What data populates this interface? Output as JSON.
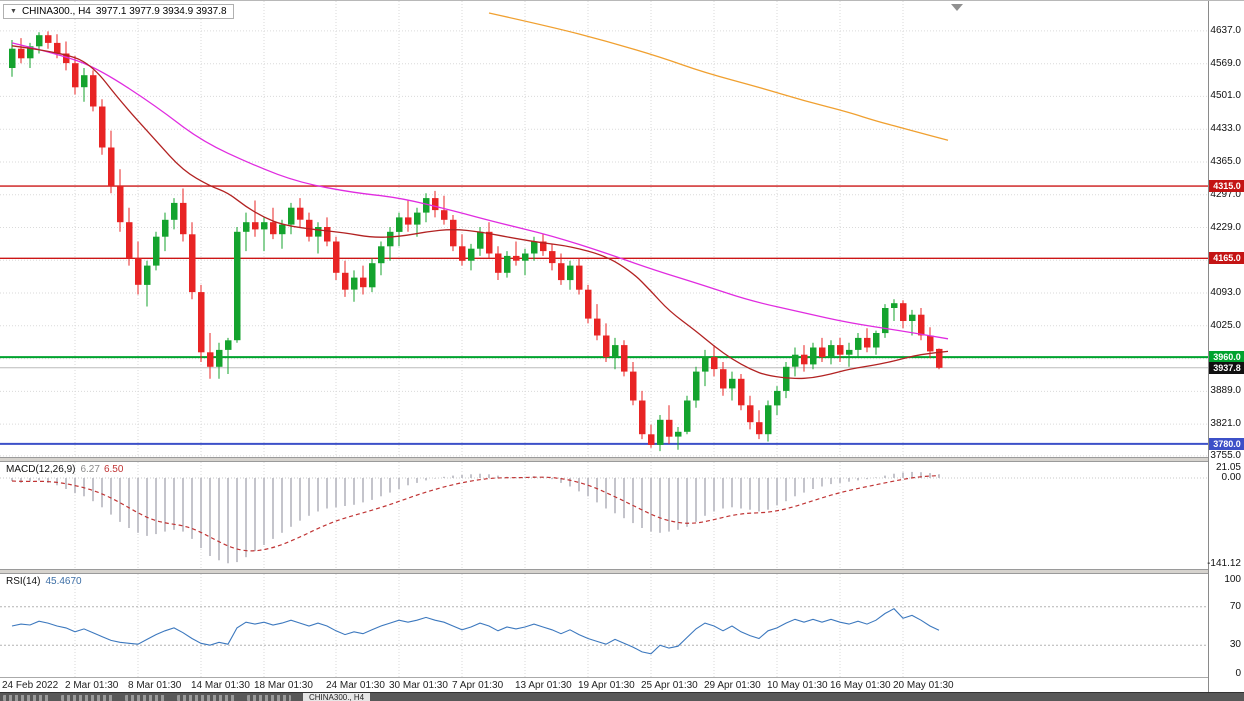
{
  "header": {
    "collapse_icon": "▼",
    "symbol_timeframe": "CHINA300., H4",
    "ohlc_text": "3977.1 3977.9 3934.9 3937.8"
  },
  "bottom_bar": {
    "active_tab": "CHINA300., H4"
  },
  "chart_data": {
    "type": "candlestick",
    "title": "CHINA300., H4",
    "symbol": "CHINA300.",
    "timeframe": "H4",
    "current_ohlc": {
      "open": 3977.1,
      "high": 3977.9,
      "low": 3934.9,
      "close": 3937.8
    },
    "colors": {
      "up": "#14a32e",
      "down": "#e82424",
      "grid": "#dadada",
      "rsi_line": "#3c78be",
      "macd_hist": "#b6b6be",
      "macd_signal": "#c03434"
    },
    "price_axis": {
      "grid_prices": [
        4637,
        4569,
        4501,
        4433,
        4365,
        4297,
        4229,
        4161,
        4093,
        4025,
        3957,
        3889,
        3821,
        3755
      ],
      "labels": [
        {
          "text": "4637.0",
          "price": 4637
        },
        {
          "text": "4569.0",
          "price": 4569
        },
        {
          "text": "4501.0",
          "price": 4501
        },
        {
          "text": "4433.0",
          "price": 4433
        },
        {
          "text": "4365.0",
          "price": 4365
        },
        {
          "text": "4297.0",
          "price": 4297
        },
        {
          "text": "4229.0",
          "price": 4229
        },
        {
          "text": "4093.0",
          "price": 4093
        },
        {
          "text": "4025.0",
          "price": 4025
        },
        {
          "text": "3889.0",
          "price": 3889
        },
        {
          "text": "3821.0",
          "price": 3821
        },
        {
          "text": "3755.0",
          "price": 3755
        }
      ],
      "badges": [
        {
          "text": "4315.0",
          "price": 4315,
          "bg": "#c41414",
          "name": "resistance-line-badge"
        },
        {
          "text": "4165.0",
          "price": 4165,
          "bg": "#c41414",
          "name": "resistance-line-badge"
        },
        {
          "text": "3960.0",
          "price": 3960,
          "bg": "#00a32e",
          "name": "support-line-badge"
        },
        {
          "text": "3937.8",
          "price": 3937.8,
          "bg": "#101010",
          "name": "current-price-badge"
        },
        {
          "text": "3780.0",
          "price": 3780,
          "bg": "#3c50c8",
          "name": "support-line-badge"
        }
      ]
    },
    "hlines": [
      {
        "price": 4315,
        "color": "#cc1616",
        "w": 1.4
      },
      {
        "price": 4165,
        "color": "#cc1616",
        "w": 1.4
      },
      {
        "price": 3960,
        "color": "#00a32e",
        "w": 2
      },
      {
        "price": 3780,
        "color": "#3c50c8",
        "w": 2
      },
      {
        "price": 3937.8,
        "color": "#bcbcbc",
        "w": 1
      }
    ],
    "time_labels": [
      {
        "i": 0,
        "t": "24 Feb 2022"
      },
      {
        "i": 7,
        "t": "2 Mar 01:30"
      },
      {
        "i": 14,
        "t": "8 Mar 01:30"
      },
      {
        "i": 21,
        "t": "14 Mar 01:30"
      },
      {
        "i": 28,
        "t": "18 Mar 01:30"
      },
      {
        "i": 36,
        "t": "24 Mar 01:30"
      },
      {
        "i": 43,
        "t": "30 Mar 01:30"
      },
      {
        "i": 50,
        "t": "7 Apr 01:30"
      },
      {
        "i": 57,
        "t": "13 Apr 01:30"
      },
      {
        "i": 64,
        "t": "19 Apr 01:30"
      },
      {
        "i": 71,
        "t": "25 Apr 01:30"
      },
      {
        "i": 78,
        "t": "29 Apr 01:30"
      },
      {
        "i": 85,
        "t": "10 May 01:30"
      },
      {
        "i": 92,
        "t": "16 May 01:30"
      },
      {
        "i": 99,
        "t": "20 May 01:30"
      }
    ],
    "candles": [
      [
        4560,
        4618,
        4542,
        4600
      ],
      [
        4600,
        4622,
        4570,
        4580
      ],
      [
        4580,
        4612,
        4560,
        4605
      ],
      [
        4605,
        4634,
        4590,
        4628
      ],
      [
        4628,
        4636,
        4600,
        4612
      ],
      [
        4612,
        4630,
        4580,
        4590
      ],
      [
        4590,
        4615,
        4555,
        4570
      ],
      [
        4570,
        4585,
        4505,
        4520
      ],
      [
        4520,
        4560,
        4490,
        4545
      ],
      [
        4545,
        4555,
        4470,
        4480
      ],
      [
        4480,
        4495,
        4380,
        4395
      ],
      [
        4395,
        4430,
        4300,
        4315
      ],
      [
        4315,
        4350,
        4220,
        4240
      ],
      [
        4240,
        4270,
        4150,
        4165
      ],
      [
        4165,
        4200,
        4090,
        4110
      ],
      [
        4110,
        4160,
        4065,
        4150
      ],
      [
        4150,
        4220,
        4140,
        4210
      ],
      [
        4210,
        4260,
        4180,
        4245
      ],
      [
        4245,
        4290,
        4225,
        4280
      ],
      [
        4280,
        4310,
        4200,
        4215
      ],
      [
        4215,
        4240,
        4080,
        4095
      ],
      [
        4095,
        4110,
        3950,
        3970
      ],
      [
        3970,
        4010,
        3915,
        3940
      ],
      [
        3940,
        3990,
        3915,
        3975
      ],
      [
        3975,
        4000,
        3925,
        3995
      ],
      [
        3995,
        4230,
        3990,
        4220
      ],
      [
        4220,
        4260,
        4180,
        4240
      ],
      [
        4240,
        4285,
        4210,
        4225
      ],
      [
        4225,
        4250,
        4180,
        4240
      ],
      [
        4240,
        4270,
        4205,
        4215
      ],
      [
        4215,
        4245,
        4185,
        4235
      ],
      [
        4235,
        4280,
        4215,
        4270
      ],
      [
        4270,
        4290,
        4230,
        4245
      ],
      [
        4245,
        4260,
        4200,
        4210
      ],
      [
        4210,
        4240,
        4175,
        4230
      ],
      [
        4230,
        4250,
        4190,
        4200
      ],
      [
        4200,
        4210,
        4120,
        4135
      ],
      [
        4135,
        4160,
        4085,
        4100
      ],
      [
        4100,
        4140,
        4075,
        4125
      ],
      [
        4125,
        4150,
        4090,
        4105
      ],
      [
        4105,
        4165,
        4095,
        4155
      ],
      [
        4155,
        4200,
        4130,
        4190
      ],
      [
        4190,
        4230,
        4160,
        4220
      ],
      [
        4220,
        4260,
        4190,
        4250
      ],
      [
        4250,
        4285,
        4220,
        4235
      ],
      [
        4235,
        4270,
        4210,
        4260
      ],
      [
        4260,
        4300,
        4240,
        4290
      ],
      [
        4290,
        4305,
        4250,
        4265
      ],
      [
        4265,
        4295,
        4235,
        4245
      ],
      [
        4245,
        4255,
        4180,
        4190
      ],
      [
        4190,
        4215,
        4150,
        4160
      ],
      [
        4160,
        4195,
        4140,
        4185
      ],
      [
        4185,
        4230,
        4170,
        4220
      ],
      [
        4220,
        4240,
        4165,
        4175
      ],
      [
        4175,
        4190,
        4120,
        4135
      ],
      [
        4135,
        4180,
        4125,
        4170
      ],
      [
        4170,
        4200,
        4150,
        4160
      ],
      [
        4160,
        4185,
        4130,
        4175
      ],
      [
        4175,
        4210,
        4160,
        4200
      ],
      [
        4200,
        4215,
        4170,
        4180
      ],
      [
        4180,
        4195,
        4140,
        4155
      ],
      [
        4155,
        4175,
        4110,
        4120
      ],
      [
        4120,
        4160,
        4100,
        4150
      ],
      [
        4150,
        4165,
        4090,
        4100
      ],
      [
        4100,
        4110,
        4030,
        4040
      ],
      [
        4040,
        4070,
        3995,
        4005
      ],
      [
        4005,
        4030,
        3950,
        3960
      ],
      [
        3960,
        4000,
        3935,
        3985
      ],
      [
        3985,
        3995,
        3920,
        3930
      ],
      [
        3930,
        3950,
        3860,
        3870
      ],
      [
        3870,
        3890,
        3790,
        3800
      ],
      [
        3800,
        3820,
        3772,
        3778
      ],
      [
        3778,
        3840,
        3765,
        3830
      ],
      [
        3830,
        3860,
        3780,
        3795
      ],
      [
        3795,
        3815,
        3768,
        3805
      ],
      [
        3805,
        3880,
        3800,
        3870
      ],
      [
        3870,
        3940,
        3855,
        3930
      ],
      [
        3930,
        3975,
        3900,
        3960
      ],
      [
        3960,
        3985,
        3920,
        3935
      ],
      [
        3935,
        3950,
        3880,
        3895
      ],
      [
        3895,
        3930,
        3870,
        3915
      ],
      [
        3915,
        3925,
        3850,
        3860
      ],
      [
        3860,
        3880,
        3810,
        3825
      ],
      [
        3825,
        3850,
        3790,
        3800
      ],
      [
        3800,
        3870,
        3785,
        3860
      ],
      [
        3860,
        3900,
        3840,
        3890
      ],
      [
        3890,
        3950,
        3875,
        3940
      ],
      [
        3940,
        3980,
        3920,
        3965
      ],
      [
        3965,
        3985,
        3930,
        3945
      ],
      [
        3945,
        3990,
        3935,
        3980
      ],
      [
        3980,
        4000,
        3950,
        3960
      ],
      [
        3960,
        3995,
        3945,
        3985
      ],
      [
        3985,
        4000,
        3950,
        3965
      ],
      [
        3965,
        3990,
        3940,
        3975
      ],
      [
        3975,
        4010,
        3960,
        4000
      ],
      [
        4000,
        4020,
        3970,
        3980
      ],
      [
        3980,
        4015,
        3965,
        4010
      ],
      [
        4010,
        4070,
        4000,
        4062
      ],
      [
        4062,
        4080,
        4035,
        4072
      ],
      [
        4072,
        4078,
        4020,
        4035
      ],
      [
        4035,
        4058,
        4005,
        4048
      ],
      [
        4048,
        4062,
        3995,
        4005
      ],
      [
        4005,
        4022,
        3958,
        3972
      ],
      [
        3977.1,
        3977.9,
        3934.9,
        3937.8
      ]
    ],
    "overlays": {
      "ma_magenta": {
        "color": "#e02ce0",
        "points": [
          [
            0,
            4612
          ],
          [
            6,
            4585
          ],
          [
            10,
            4554
          ],
          [
            16,
            4481
          ],
          [
            21,
            4409
          ],
          [
            27,
            4357
          ],
          [
            32,
            4322
          ],
          [
            38,
            4301
          ],
          [
            43,
            4291
          ],
          [
            49,
            4264
          ],
          [
            54,
            4239
          ],
          [
            60,
            4212
          ],
          [
            66,
            4176
          ],
          [
            71,
            4143
          ],
          [
            77,
            4108
          ],
          [
            82,
            4077
          ],
          [
            88,
            4052
          ],
          [
            93,
            4031
          ],
          [
            99,
            4014
          ],
          [
            104,
            3998
          ]
        ]
      },
      "ma_darkred": {
        "color": "#b22222",
        "points": [
          [
            0,
            4606
          ],
          [
            6,
            4591
          ],
          [
            9,
            4564
          ],
          [
            12,
            4492
          ],
          [
            16,
            4409
          ],
          [
            19,
            4347
          ],
          [
            22,
            4315
          ],
          [
            24,
            4301
          ],
          [
            26,
            4272
          ],
          [
            28,
            4250
          ],
          [
            30,
            4235
          ],
          [
            33,
            4226
          ],
          [
            37,
            4218
          ],
          [
            40,
            4208
          ],
          [
            43,
            4210
          ],
          [
            46,
            4220
          ],
          [
            49,
            4226
          ],
          [
            52,
            4220
          ],
          [
            56,
            4206
          ],
          [
            59,
            4197
          ],
          [
            62,
            4190
          ],
          [
            66,
            4170
          ],
          [
            69,
            4135
          ],
          [
            71,
            4097
          ],
          [
            73,
            4056
          ],
          [
            76,
            4014
          ],
          [
            78,
            3983
          ],
          [
            80,
            3956
          ],
          [
            82,
            3935
          ],
          [
            84,
            3921
          ],
          [
            87,
            3915
          ],
          [
            89,
            3917
          ],
          [
            91,
            3925
          ],
          [
            93,
            3935
          ],
          [
            96,
            3944
          ],
          [
            98,
            3952
          ],
          [
            100,
            3962
          ],
          [
            102,
            3968
          ],
          [
            104,
            3972
          ]
        ]
      },
      "ma_orange": {
        "color": "#f0a030",
        "points": [
          [
            53,
            4674
          ],
          [
            60,
            4645
          ],
          [
            66,
            4616
          ],
          [
            72,
            4583
          ],
          [
            77,
            4550
          ],
          [
            83,
            4520
          ],
          [
            88,
            4492
          ],
          [
            93,
            4468
          ],
          [
            96,
            4450
          ],
          [
            100,
            4430
          ],
          [
            104,
            4410
          ]
        ]
      }
    },
    "macd": {
      "name": "MACD(12,26,9)",
      "value_main": "6.27",
      "value_signal": "6.50",
      "scale_labels": [
        {
          "text": "21.05",
          "value": 21.05
        },
        {
          "text": "0.00",
          "value": 0
        },
        {
          "text": "-141.12",
          "value": -141.12
        }
      ],
      "histogram": [
        -5,
        -8,
        -6,
        -4,
        -8,
        -12,
        -18,
        -25,
        -30,
        -38,
        -48,
        -60,
        -72,
        -82,
        -90,
        -95,
        -92,
        -88,
        -85,
        -88,
        -100,
        -115,
        -128,
        -135,
        -140,
        -138,
        -130,
        -120,
        -110,
        -100,
        -90,
        -80,
        -70,
        -62,
        -55,
        -50,
        -48,
        -46,
        -44,
        -40,
        -36,
        -30,
        -24,
        -18,
        -12,
        -8,
        -4,
        -1,
        2,
        4,
        5,
        6,
        7,
        6,
        4,
        2,
        1,
        2,
        3,
        2,
        -2,
        -8,
        -14,
        -22,
        -30,
        -40,
        -50,
        -58,
        -66,
        -74,
        -82,
        -88,
        -90,
        -88,
        -85,
        -80,
        -72,
        -62,
        -55,
        -50,
        -48,
        -50,
        -52,
        -55,
        -52,
        -45,
        -38,
        -30,
        -24,
        -18,
        -14,
        -10,
        -8,
        -6,
        -4,
        -2,
        1,
        4,
        7,
        9,
        10,
        9.5,
        8,
        6.27
      ]
    },
    "rsi": {
      "name": "RSI(14)",
      "value": "45.4670",
      "levels": [
        70,
        30
      ],
      "scale_labels": [
        {
          "text": "100",
          "value": 100
        },
        {
          "text": "70",
          "value": 70
        },
        {
          "text": "30",
          "value": 30
        },
        {
          "text": "0",
          "value": 0
        }
      ],
      "series": [
        50,
        52,
        51,
        55,
        53,
        50,
        48,
        44,
        47,
        43,
        39,
        35,
        33,
        32,
        31,
        36,
        41,
        45,
        48,
        43,
        37,
        32,
        30,
        33,
        31,
        48,
        54,
        52,
        54,
        51,
        53,
        56,
        53,
        50,
        53,
        50,
        45,
        41,
        44,
        42,
        46,
        50,
        53,
        56,
        54,
        56,
        59,
        56,
        54,
        50,
        46,
        49,
        53,
        50,
        45,
        49,
        47,
        49,
        52,
        49,
        46,
        42,
        46,
        41,
        37,
        34,
        31,
        36,
        32,
        28,
        23,
        21,
        30,
        27,
        29,
        38,
        47,
        53,
        50,
        45,
        50,
        44,
        40,
        37,
        45,
        48,
        53,
        57,
        54,
        57,
        54,
        57,
        54,
        52,
        55,
        52,
        56,
        63,
        68,
        58,
        61,
        56,
        50,
        45.47
      ]
    }
  }
}
